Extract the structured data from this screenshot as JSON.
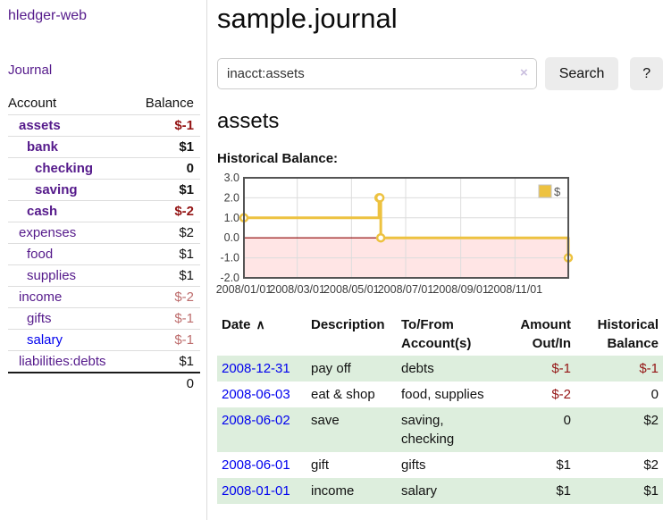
{
  "colors": {
    "link_purple": "#551a8b",
    "link_blue": "#0000ee",
    "negative_strong": "#941414",
    "negative_soft": "#bd6c6c",
    "row_stripe_green": "#ddeedd",
    "chart_series_gold": "#edc240",
    "zero_line_red": "#8b0000"
  },
  "sidebar": {
    "brand": "hledger-web",
    "journal_link": "Journal",
    "accounts_table": {
      "headers": [
        "Account",
        "Balance"
      ],
      "rows": [
        {
          "name": "assets",
          "indent": 1,
          "bold": true,
          "balance": "$-1",
          "balance_style": "neg-strong"
        },
        {
          "name": "bank",
          "indent": 2,
          "bold": true,
          "balance": "$1",
          "balance_style": "pos"
        },
        {
          "name": "checking",
          "indent": 3,
          "bold": true,
          "balance": "0",
          "balance_style": "pos"
        },
        {
          "name": "saving",
          "indent": 3,
          "bold": true,
          "balance": "$1",
          "balance_style": "pos"
        },
        {
          "name": "cash",
          "indent": 2,
          "bold": true,
          "balance": "$-2",
          "balance_style": "neg-strong"
        },
        {
          "name": "expenses",
          "indent": 1,
          "bold": false,
          "balance": "$2",
          "balance_style": "pos"
        },
        {
          "name": "food",
          "indent": 2,
          "bold": false,
          "balance": "$1",
          "balance_style": "pos"
        },
        {
          "name": "supplies",
          "indent": 2,
          "bold": false,
          "balance": "$1",
          "balance_style": "pos"
        },
        {
          "name": "income",
          "indent": 1,
          "bold": false,
          "balance": "$-2",
          "balance_style": "neg-soft"
        },
        {
          "name": "gifts",
          "indent": 2,
          "bold": false,
          "balance": "$-1",
          "balance_style": "neg-soft"
        },
        {
          "name": "salary",
          "indent": 2,
          "bold": false,
          "balance": "$-1",
          "balance_style": "neg-soft",
          "link_style": "unvisited"
        },
        {
          "name": "liabilities:debts",
          "indent": 1,
          "bold": false,
          "balance": "$1",
          "balance_style": "pos"
        }
      ],
      "total": "0"
    }
  },
  "main": {
    "title": "sample.journal",
    "search": {
      "value": "inacct:assets",
      "clear_icon": "×",
      "button_label": "Search",
      "help_label": "?"
    },
    "account_heading": "assets",
    "chart_label": "Historical Balance:"
  },
  "chart_data": {
    "type": "line",
    "step": true,
    "title": "Historical Balance",
    "series": [
      {
        "name": "$",
        "color": "#edc240",
        "points": [
          [
            "2008-01-01",
            1
          ],
          [
            "2008-06-01",
            2
          ],
          [
            "2008-06-02",
            2
          ],
          [
            "2008-06-03",
            0
          ],
          [
            "2008-12-31",
            -1
          ]
        ]
      }
    ],
    "x_range": [
      "2008-01-01",
      "2008-12-31"
    ],
    "x_ticks": [
      "2008/01/01",
      "2008/03/01",
      "2008/05/01",
      "2008/07/01",
      "2008/09/01",
      "2008/11/01"
    ],
    "y_ticks": [
      "3.0",
      "2.0",
      "1.0",
      "0.0",
      "-1.0",
      "-2.0"
    ],
    "ylim": [
      -2,
      3
    ],
    "grid": true,
    "legend_position": "top-right",
    "legend_label": "$",
    "negative_region": {
      "below": 0,
      "color": "rgba(255,0,0,0.10)"
    },
    "zero_line_color": "#8b0000"
  },
  "transactions": {
    "headers": [
      "Date",
      "Description",
      "To/From Account(s)",
      "Amount Out/In",
      "Historical Balance"
    ],
    "sort_icon": "∧",
    "rows": [
      {
        "date": "2008-12-31",
        "description": "pay off",
        "accounts": "debts",
        "amount": "$-1",
        "balance": "$-1"
      },
      {
        "date": "2008-06-03",
        "description": "eat & shop",
        "accounts": "food, supplies",
        "amount": "$-2",
        "balance": "0"
      },
      {
        "date": "2008-06-02",
        "description": "save",
        "accounts": "saving, checking",
        "accounts_wrap": true,
        "amount": "0",
        "balance": "$2"
      },
      {
        "date": "2008-06-01",
        "description": "gift",
        "accounts": "gifts",
        "amount": "$1",
        "balance": "$2"
      },
      {
        "date": "2008-01-01",
        "description": "income",
        "accounts": "salary",
        "amount": "$1",
        "balance": "$1"
      }
    ]
  }
}
